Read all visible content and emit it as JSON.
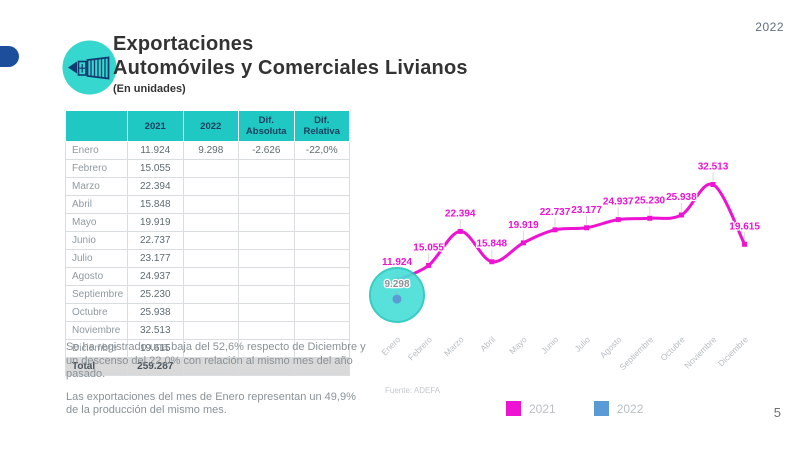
{
  "slide": {
    "year_badge": "2022",
    "page_number": "5",
    "title_line1": "Exportaciones",
    "title_line2": "Automóviles y Comerciales Livianos",
    "subtitle": "(En unidades)",
    "icon": "container-export-icon",
    "accent_teal": "#1fc8c3",
    "accent_navy": "#1d4e9b"
  },
  "table": {
    "columns": [
      "",
      "2021",
      "2022",
      "Dif. Absoluta",
      "Dif. Relativa"
    ],
    "rows": [
      [
        "Enero",
        "11.924",
        "9.298",
        "-2.626",
        "-22,0%"
      ],
      [
        "Febrero",
        "15.055",
        "",
        "",
        ""
      ],
      [
        "Marzo",
        "22.394",
        "",
        "",
        ""
      ],
      [
        "Abril",
        "15.848",
        "",
        "",
        ""
      ],
      [
        "Mayo",
        "19.919",
        "",
        "",
        ""
      ],
      [
        "Junio",
        "22.737",
        "",
        "",
        ""
      ],
      [
        "Julio",
        "23.177",
        "",
        "",
        ""
      ],
      [
        "Agosto",
        "24.937",
        "",
        "",
        ""
      ],
      [
        "Septiembre",
        "25.230",
        "",
        "",
        ""
      ],
      [
        "Octubre",
        "25.938",
        "",
        "",
        ""
      ],
      [
        "Noviembre",
        "32.513",
        "",
        "",
        ""
      ],
      [
        "Diciembre",
        "19.615",
        "",
        "",
        ""
      ]
    ],
    "total_row": [
      "Total",
      "259.287",
      "",
      "",
      ""
    ]
  },
  "notes": {
    "p1": "Se ha registrado una baja del 52,6% respecto de Diciembre y un descenso del 22,0% con relación al mismo mes del año pasado.",
    "p2": "Las exportaciones del mes de Enero representan un 49,9% de la producción del mismo mes."
  },
  "chart_data": {
    "type": "line",
    "title": "",
    "categories": [
      "Enero",
      "Febrero",
      "Marzo",
      "Abril",
      "Mayo",
      "Junio",
      "Julio",
      "Agosto",
      "Septiembre",
      "Octubre",
      "Noviembre",
      "Diciembre"
    ],
    "series": [
      {
        "name": "2021",
        "color": "#ee12d3",
        "values": [
          11924,
          15055,
          22394,
          15848,
          19919,
          22737,
          23177,
          24937,
          25230,
          25938,
          32513,
          19615
        ],
        "labels": [
          "11.924",
          "15.055",
          "22.394",
          "15.848",
          "19.919",
          "22.737",
          "23.177",
          "24.937",
          "25.230",
          "25.938",
          "32.513",
          "19.615"
        ]
      },
      {
        "name": "2022",
        "color": "#5b9bd5",
        "values": [
          9298,
          null,
          null,
          null,
          null,
          null,
          null,
          null,
          null,
          null,
          null,
          null
        ],
        "labels": [
          "9.298",
          "",
          "",
          "",
          "",
          "",
          "",
          "",
          "",
          "",
          "",
          ""
        ]
      }
    ],
    "ylim": [
      5000,
      35000
    ],
    "grid": false,
    "legend_position": "bottom",
    "source": "Fuente: ADEFA",
    "highlight": {
      "category": "Enero",
      "shape": "circle",
      "fill": "#4adfd7",
      "stroke": "#29c8bf"
    },
    "label_color_2022": "#8a9298",
    "axis_label_color": "#b8bec3"
  }
}
